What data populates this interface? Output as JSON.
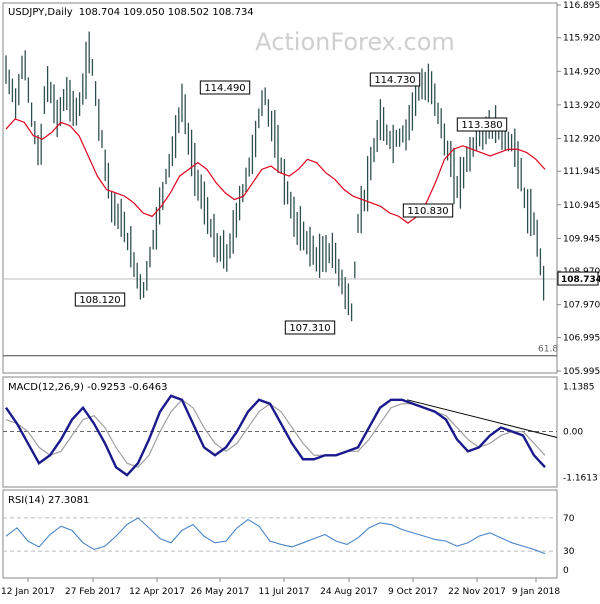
{
  "header": {
    "symbol": "USDJPY,Daily",
    "ohlc": "108.704 109.050 108.502 108.734"
  },
  "watermark": "ActionForex.com",
  "colors": {
    "candle": "#2f4f4f",
    "ma": "#e0001b",
    "macd": "#1a1a8c",
    "signal": "#a0a0a0",
    "rsi": "#4a86c8",
    "grid": "#bcbcbc",
    "level": "#555555"
  },
  "chart_data": [
    {
      "type": "candlestick",
      "title": "USDJPY,Daily",
      "y_ticks": [
        "116.895",
        "115.920",
        "114.920",
        "113.920",
        "112.920",
        "111.945",
        "110.945",
        "109.945",
        "108.970",
        "107.970",
        "106.995",
        "105.995"
      ],
      "ylim": [
        105.995,
        116.895
      ],
      "x_ticks": [
        "12 Jan 2017",
        "27 Feb 2017",
        "12 Apr 2017",
        "26 May 2017",
        "11 Jul 2017",
        "24 Aug 2017",
        "9 Oct 2017",
        "22 Nov 2017",
        "9 Jan 2018"
      ],
      "current_price": "108.734",
      "horizontal_levels": [
        {
          "label": "61.8",
          "value": 106.45
        },
        {
          "label": "",
          "value": 108.734
        }
      ],
      "annotations": [
        "114.490",
        "108.120",
        "107.310",
        "114.730",
        "113.380",
        "110.830"
      ],
      "series": [
        {
          "name": "",
          "type": "line",
          "values": [
            113.2,
            113.5,
            113.4,
            113.0,
            112.9,
            113.1,
            113.4,
            113.3,
            113.0,
            112.4,
            111.8,
            111.4,
            111.3,
            111.2,
            111.0,
            110.7,
            110.6,
            110.9,
            111.3,
            111.8,
            112.0,
            112.2,
            112.0,
            111.6,
            111.3,
            111.1,
            111.2,
            111.6,
            112.0,
            112.1,
            111.9,
            111.8,
            112.0,
            112.3,
            112.2,
            111.9,
            111.7,
            111.4,
            111.2,
            111.1,
            111.0,
            110.9,
            110.7,
            110.6,
            110.4,
            110.6,
            111.0,
            111.6,
            112.3,
            112.6,
            112.7,
            112.6,
            112.5,
            112.4,
            112.5,
            112.6,
            112.6,
            112.5,
            112.3,
            112.0
          ]
        }
      ]
    },
    {
      "type": "line",
      "title": "MACD(12,26,9) -0.9253 -0.6463",
      "y_ticks": [
        "1.1385",
        "0.00",
        "-1.1613"
      ],
      "series": [
        {
          "name": "",
          "values": [
            0.6,
            0.2,
            -0.3,
            -0.8,
            -0.6,
            -0.2,
            0.3,
            0.6,
            0.2,
            -0.3,
            -0.9,
            -1.1,
            -0.8,
            -0.2,
            0.5,
            0.9,
            0.8,
            0.2,
            -0.4,
            -0.6,
            -0.4,
            0.0,
            0.5,
            0.8,
            0.7,
            0.2,
            -0.3,
            -0.7,
            -0.7,
            -0.6,
            -0.6,
            -0.5,
            -0.4,
            0.1,
            0.6,
            0.8,
            0.8,
            0.7,
            0.6,
            0.5,
            0.3,
            -0.2,
            -0.5,
            -0.4,
            -0.1,
            0.1,
            0.0,
            -0.1,
            -0.6,
            -0.9
          ]
        },
        {
          "name": "",
          "values": [
            0.3,
            0.2,
            0.0,
            -0.4,
            -0.6,
            -0.5,
            -0.1,
            0.3,
            0.4,
            0.1,
            -0.4,
            -0.8,
            -0.9,
            -0.6,
            0.0,
            0.5,
            0.8,
            0.6,
            0.1,
            -0.3,
            -0.5,
            -0.3,
            0.1,
            0.5,
            0.7,
            0.5,
            0.1,
            -0.3,
            -0.6,
            -0.6,
            -0.6,
            -0.5,
            -0.5,
            -0.2,
            0.2,
            0.6,
            0.7,
            0.7,
            0.6,
            0.5,
            0.4,
            0.1,
            -0.2,
            -0.4,
            -0.3,
            -0.1,
            0.0,
            0.0,
            -0.3,
            -0.6
          ]
        }
      ],
      "trendline": {
        "from": [
          0.8,
          0.8
        ],
        "to": [
          1.0,
          -0.15
        ]
      }
    },
    {
      "type": "line",
      "title": "RSI(14) 27.3081",
      "y_ticks": [
        "70",
        "30",
        "0"
      ],
      "ylim": [
        0,
        100
      ],
      "series": [
        {
          "name": "",
          "values": [
            48,
            58,
            42,
            35,
            50,
            60,
            55,
            40,
            32,
            36,
            48,
            62,
            70,
            58,
            45,
            40,
            55,
            62,
            48,
            40,
            42,
            58,
            68,
            60,
            42,
            38,
            35,
            40,
            45,
            50,
            42,
            38,
            46,
            58,
            64,
            62,
            56,
            52,
            48,
            44,
            42,
            36,
            40,
            48,
            52,
            46,
            40,
            36,
            32,
            27
          ]
        }
      ]
    }
  ]
}
